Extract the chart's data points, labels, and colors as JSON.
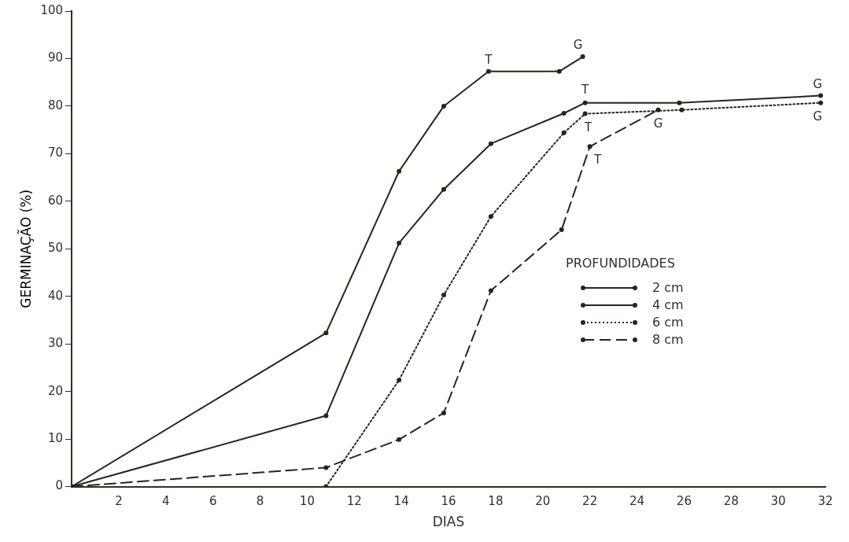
{
  "chart_data": {
    "type": "line",
    "xlabel": "DIAS",
    "ylabel": "GERMINAÇÃO (%)",
    "legend_title": "PROFUNDIDADES",
    "xlim": [
      0,
      32
    ],
    "xticks": [
      2,
      4,
      6,
      8,
      10,
      12,
      14,
      16,
      18,
      20,
      22,
      24,
      26,
      28,
      30,
      32
    ],
    "ylim": [
      0,
      100
    ],
    "yticks": [
      0,
      10,
      20,
      30,
      40,
      50,
      60,
      70,
      80,
      90,
      100
    ],
    "grid": false,
    "legend": "right",
    "marker": "circle",
    "series": [
      {
        "name": "2 cm",
        "color": "#1f2a1a",
        "line_style": "solid",
        "x": [
          0,
          10.8,
          13.9,
          15.8,
          17.7,
          20.7,
          21.7
        ],
        "values": [
          0,
          32.3,
          66.3,
          80,
          87.3,
          87.3,
          90.4
        ]
      },
      {
        "name": "4 cm",
        "color": "#1f2a1a",
        "line_style": "solid",
        "x": [
          0,
          10.8,
          13.9,
          15.8,
          17.8,
          20.9,
          21.8,
          25.8,
          31.8
        ],
        "values": [
          0,
          14.9,
          51.2,
          62.5,
          72.1,
          78.5,
          80.7,
          80.7,
          82.2
        ]
      },
      {
        "name": "6 cm",
        "color": "#1f2a1a",
        "line_style": "dotted",
        "x": [
          10.8,
          13.9,
          15.8,
          17.8,
          20.9,
          21.8,
          25.9,
          31.8
        ],
        "values": [
          0,
          22.4,
          40.3,
          56.8,
          74.4,
          78.4,
          79.2,
          80.7
        ]
      },
      {
        "name": "8 cm",
        "color": "#1f2a1a",
        "line_style": "dashed",
        "x": [
          0,
          10.8,
          13.9,
          15.8,
          17.8,
          20.8,
          22,
          24.9
        ],
        "values": [
          0,
          4,
          9.9,
          15.5,
          41.2,
          54,
          71.5,
          79.2
        ]
      }
    ],
    "annotations": [
      {
        "text": "T",
        "x": 17.7,
        "y": 87.3
      },
      {
        "text": "G",
        "x": 21.7,
        "y": 90.4
      },
      {
        "text": "T",
        "x": 21.8,
        "y": 80.7
      },
      {
        "text": "G",
        "x": 31.8,
        "y": 82.2
      },
      {
        "text": "T",
        "x": 21.8,
        "y": 78.4
      },
      {
        "text": "G",
        "x": 31.8,
        "y": 80.7
      },
      {
        "text": "T",
        "x": 22,
        "y": 71.5
      },
      {
        "text": "G",
        "x": 24.9,
        "y": 79.2
      }
    ]
  }
}
